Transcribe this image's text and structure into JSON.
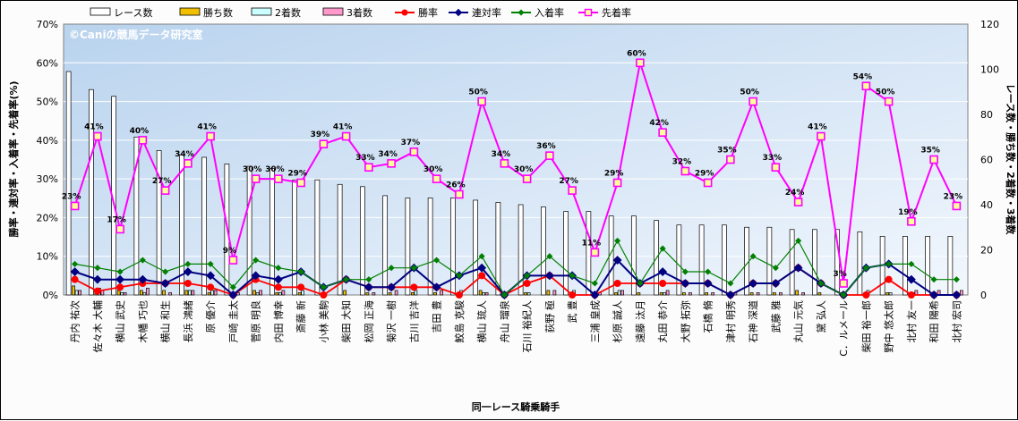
{
  "chart_data": {
    "type": "bar+line",
    "watermark": "©Caniの競馬データ研究室",
    "xlabel": "同一レース騎乗騎手",
    "ylabel_left": "勝率・連対率・入着率・先着率(%)",
    "ylabel_right": "レース数・勝ち数・2着数・3着数",
    "ylim_left": [
      0,
      70
    ],
    "ylim_right": [
      0,
      120
    ],
    "left_ticks": [
      "0%",
      "10%",
      "20%",
      "30%",
      "40%",
      "50%",
      "60%",
      "70%"
    ],
    "right_ticks": [
      "0",
      "20",
      "40",
      "60",
      "80",
      "100",
      "120"
    ],
    "grid": true,
    "legend_position": "top",
    "categories": [
      "丹内 祐次",
      "佐々木 大輔",
      "横山 武史",
      "木幡 巧也",
      "横山 和生",
      "長浜 鴻緒",
      "原 優介",
      "戸崎 圭太",
      "菅原 明良",
      "内田 博幸",
      "斎藤 新",
      "小林 美駒",
      "柴田 大知",
      "松岡 正海",
      "菊沢 一樹",
      "古川 吉洋",
      "吉田 豊",
      "鮫島 克駿",
      "横山 琉人",
      "舟山 瑠泉",
      "石川 裕紀人",
      "荻野 極",
      "武 豊",
      "三浦 皇成",
      "杉原 誠人",
      "遠藤 汰月",
      "丸田 恭介",
      "大野 拓弥",
      "石橋 脩",
      "津村 明秀",
      "石神 深道",
      "武藤 雅",
      "丸山 元気",
      "黛 弘人",
      "C．ルメール",
      "柴田 裕一郎",
      "野中 悠太郎",
      "北村 友一",
      "和田 陽希",
      "北村 宏司"
    ],
    "bar_series": [
      {
        "name": "レース数",
        "color": "#ffffff",
        "values": [
          99,
          91,
          88,
          70,
          64,
          62,
          61,
          58,
          57,
          56,
          51,
          51,
          49,
          48,
          44,
          43,
          43,
          43,
          42,
          41,
          40,
          39,
          37,
          37,
          35,
          35,
          33,
          31,
          31,
          31,
          30,
          30,
          29,
          29,
          29,
          28,
          26,
          26,
          26,
          26
        ]
      },
      {
        "name": "勝ち数",
        "color": "#f0c000",
        "values": [
          4,
          1,
          2,
          2,
          2,
          2,
          1,
          0,
          2,
          1,
          1,
          0,
          2,
          1,
          1,
          1,
          1,
          0,
          2,
          0,
          1,
          2,
          0,
          0,
          1,
          1,
          1,
          1,
          1,
          0,
          1,
          1,
          2,
          1,
          0,
          0,
          1,
          0,
          0,
          0
        ]
      },
      {
        "name": "2着数",
        "color": "#ccffff",
        "values": [
          2,
          3,
          1,
          1,
          0,
          2,
          2,
          0,
          1,
          1,
          2,
          1,
          0,
          0,
          0,
          2,
          0,
          2,
          1,
          0,
          1,
          0,
          2,
          0,
          2,
          0,
          1,
          0,
          0,
          0,
          0,
          0,
          0,
          0,
          0,
          2,
          1,
          1,
          0,
          0
        ]
      },
      {
        "name": "3着数",
        "color": "#ff99cc",
        "values": [
          2,
          2,
          1,
          3,
          1,
          2,
          2,
          1,
          2,
          2,
          0,
          0,
          0,
          1,
          2,
          0,
          2,
          0,
          1,
          0,
          0,
          2,
          0,
          1,
          2,
          0,
          2,
          1,
          1,
          1,
          1,
          1,
          1,
          0,
          0,
          0,
          0,
          2,
          2,
          2
        ]
      }
    ],
    "line_series": [
      {
        "name": "勝率",
        "color": "#ff0000",
        "values": [
          4,
          1,
          2,
          3,
          3,
          3,
          2,
          0,
          4,
          2,
          2,
          0,
          4,
          2,
          2,
          2,
          2,
          0,
          5,
          0,
          3,
          5,
          0,
          0,
          3,
          3,
          3,
          3,
          3,
          0,
          3,
          3,
          7,
          3,
          0,
          0,
          4,
          0,
          0,
          0
        ]
      },
      {
        "name": "連対率",
        "color": "#000080",
        "values": [
          6,
          4,
          4,
          4,
          3,
          6,
          5,
          0,
          5,
          4,
          6,
          2,
          4,
          2,
          2,
          7,
          2,
          5,
          7,
          0,
          5,
          5,
          5,
          0,
          9,
          3,
          6,
          3,
          3,
          0,
          3,
          3,
          7,
          3,
          0,
          7,
          8,
          4,
          0,
          0
        ]
      },
      {
        "name": "入着率",
        "color": "#008000",
        "values": [
          8,
          7,
          6,
          9,
          6,
          8,
          8,
          2,
          9,
          7,
          6,
          2,
          4,
          4,
          7,
          7,
          9,
          5,
          10,
          0,
          5,
          10,
          5,
          3,
          14,
          3,
          12,
          6,
          6,
          3,
          10,
          7,
          14,
          3,
          0,
          7,
          8,
          8,
          4,
          4
        ]
      },
      {
        "name": "先着率",
        "color": "#ff00ff",
        "values": [
          23,
          41,
          17,
          40,
          27,
          34,
          41,
          9,
          30,
          30,
          29,
          39,
          41,
          33,
          34,
          37,
          30,
          26,
          50,
          34,
          30,
          36,
          27,
          11,
          29,
          60,
          42,
          32,
          29,
          35,
          50,
          33,
          24,
          41,
          3,
          54,
          50,
          19,
          35,
          23
        ]
      }
    ],
    "data_labels_series": "先着率",
    "data_labels": [
      "23%",
      "41%",
      "17%",
      "40%",
      "27%",
      "34%",
      "41%",
      "9%",
      "30%",
      "30%",
      "29%",
      "39%",
      "41%",
      "33%",
      "34%",
      "37%",
      "30%",
      "26%",
      "50%",
      "34%",
      "30%",
      "36%",
      "27%",
      "11%",
      "29%",
      "60%",
      "42%",
      "32%",
      "29%",
      "35%",
      "50%",
      "33%",
      "24%",
      "41%",
      "3%",
      "54%",
      "50%",
      "19%",
      "35%",
      "23%"
    ]
  }
}
